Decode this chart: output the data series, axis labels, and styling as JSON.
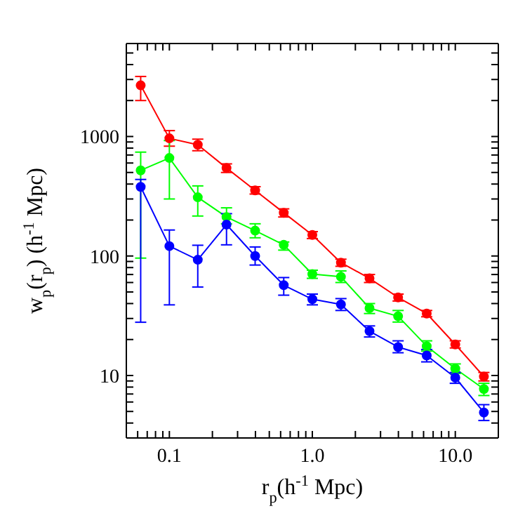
{
  "chart_data": {
    "type": "line",
    "xlabel": "r$_{p}$(h$^{-1}$ Mpc)",
    "ylabel": "w$_{p}$(r$_{p}$) (h$^{-1}$ Mpc)",
    "log": "xy",
    "marker": "circle",
    "x": [
      0.063,
      0.1,
      0.158,
      0.251,
      0.398,
      0.631,
      1.0,
      1.585,
      2.512,
      3.981,
      6.31,
      10,
      15.85
    ],
    "xlim": [
      0.05,
      20
    ],
    "ylim": [
      3,
      6000
    ],
    "xticks": [
      {
        "value": 0.06,
        "label": null
      },
      {
        "value": 0.07,
        "label": null
      },
      {
        "value": 0.08,
        "label": null
      },
      {
        "value": 0.09,
        "label": null
      },
      {
        "value": 0.1,
        "label": "0.1"
      },
      {
        "value": 0.2,
        "label": null
      },
      {
        "value": 0.3,
        "label": null
      },
      {
        "value": 0.4,
        "label": null
      },
      {
        "value": 0.5,
        "label": null
      },
      {
        "value": 0.6,
        "label": null
      },
      {
        "value": 0.7,
        "label": null
      },
      {
        "value": 0.8,
        "label": null
      },
      {
        "value": 0.9,
        "label": null
      },
      {
        "value": 1,
        "label": "1.0"
      },
      {
        "value": 2,
        "label": null
      },
      {
        "value": 3,
        "label": null
      },
      {
        "value": 4,
        "label": null
      },
      {
        "value": 5,
        "label": null
      },
      {
        "value": 6,
        "label": null
      },
      {
        "value": 7,
        "label": null
      },
      {
        "value": 8,
        "label": null
      },
      {
        "value": 9,
        "label": null
      },
      {
        "value": 10,
        "label": "10.0"
      },
      {
        "value": 20,
        "label": null
      }
    ],
    "yticks": [
      {
        "value": 4,
        "label": null
      },
      {
        "value": 5,
        "label": null
      },
      {
        "value": 6,
        "label": null
      },
      {
        "value": 7,
        "label": null
      },
      {
        "value": 8,
        "label": null
      },
      {
        "value": 9,
        "label": null
      },
      10,
      {
        "value": 20,
        "label": null
      },
      {
        "value": 30,
        "label": null
      },
      {
        "value": 40,
        "label": null
      },
      {
        "value": 50,
        "label": null
      },
      {
        "value": 60,
        "label": null
      },
      {
        "value": 70,
        "label": null
      },
      {
        "value": 80,
        "label": null
      },
      {
        "value": 90,
        "label": null
      },
      100,
      {
        "value": 200,
        "label": null
      },
      {
        "value": 300,
        "label": null
      },
      {
        "value": 400,
        "label": null
      },
      {
        "value": 500,
        "label": null
      },
      {
        "value": 600,
        "label": null
      },
      {
        "value": 700,
        "label": null
      },
      {
        "value": 800,
        "label": null
      },
      {
        "value": 900,
        "label": null
      },
      1000,
      {
        "value": 2000,
        "label": null
      },
      {
        "value": 3000,
        "label": null
      },
      {
        "value": 4000,
        "label": null
      },
      {
        "value": 5000,
        "label": null
      },
      {
        "value": 6000,
        "label": null
      }
    ],
    "series": [
      {
        "color": "#ff0000",
        "values": [
          2680,
          965,
          853,
          545,
          354,
          230,
          150,
          88,
          65,
          45,
          33,
          18.2,
          9.8
        ],
        "errors": [
          [
            2000,
            3180
          ],
          [
            830,
            1120
          ],
          [
            760,
            950
          ],
          [
            500,
            590
          ],
          [
            330,
            380
          ],
          [
            212,
            248
          ],
          [
            140,
            160
          ],
          [
            82,
            94
          ],
          [
            60,
            70
          ],
          [
            42,
            48
          ],
          [
            31,
            35
          ],
          [
            17,
            19.5
          ],
          [
            9,
            10.6
          ]
        ]
      },
      {
        "color": "#00ff00",
        "values": [
          521,
          661,
          310,
          212,
          163,
          124,
          70.6,
          67,
          36.6,
          31.3,
          17.6,
          11.4,
          7.7
        ],
        "errors": [
          [
            96,
            740
          ],
          [
            300,
            925
          ],
          [
            216,
            386
          ],
          [
            186,
            253
          ],
          [
            142,
            186
          ],
          [
            112,
            131
          ],
          [
            65,
            76
          ],
          [
            60,
            75
          ],
          [
            33,
            40
          ],
          [
            28,
            35
          ],
          [
            16,
            19.5
          ],
          [
            10.4,
            12.5
          ],
          [
            6.8,
            8.6
          ]
        ]
      },
      {
        "color": "#0000ff",
        "values": [
          379,
          121,
          93,
          183,
          100,
          57,
          43.5,
          39.3,
          23.5,
          17.3,
          14.7,
          9.6,
          4.9
        ],
        "errors": [
          [
            27.9,
            437
          ],
          [
            39,
            165
          ],
          [
            55,
            123
          ],
          [
            124,
            226
          ],
          [
            84,
            119
          ],
          [
            47,
            66
          ],
          [
            39,
            48
          ],
          [
            35,
            44
          ],
          [
            21,
            26
          ],
          [
            15.5,
            19.5
          ],
          [
            13,
            16.5
          ],
          [
            8.6,
            10.6
          ],
          [
            4.2,
            5.7
          ]
        ]
      }
    ]
  }
}
